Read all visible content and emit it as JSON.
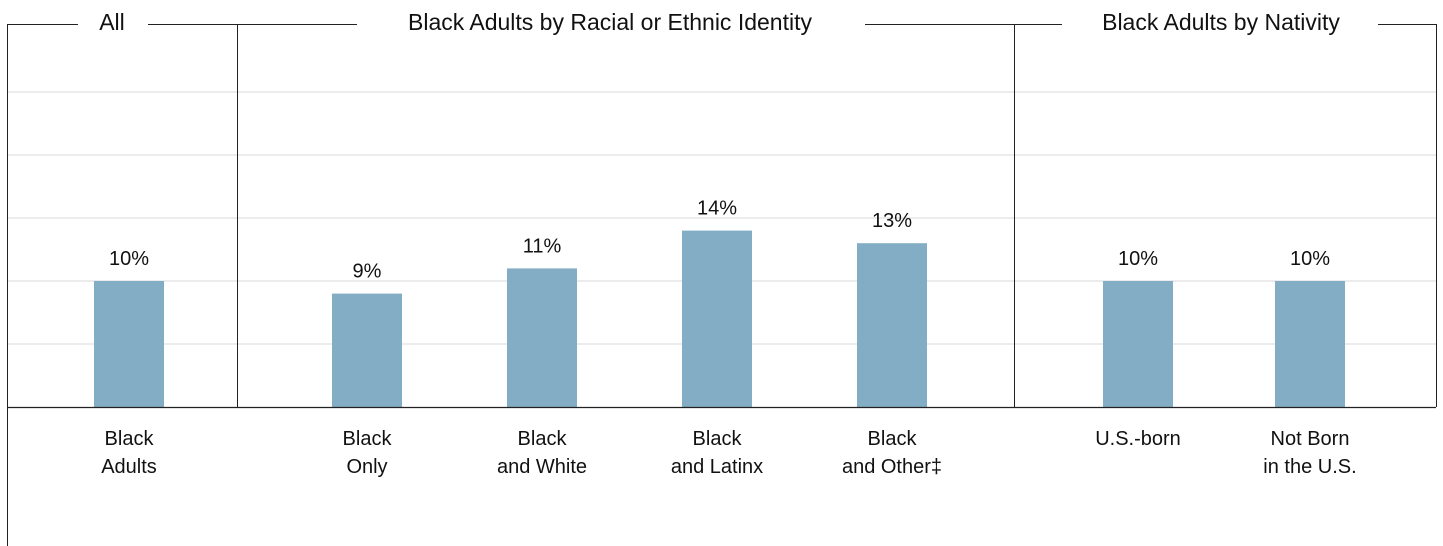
{
  "chart_data": {
    "type": "bar",
    "ylim": [
      0,
      30
    ],
    "grid": true,
    "colors": {
      "bar": "#82adc4",
      "grid": "#d9d9d9",
      "frame": "#222222"
    },
    "groups": [
      {
        "title": "All",
        "bars": [
          {
            "category": [
              "Black",
              "Adults"
            ],
            "value": 10,
            "label": "10%"
          }
        ]
      },
      {
        "title": "Black Adults by Racial or Ethnic Identity",
        "bars": [
          {
            "category": [
              "Black",
              "Only"
            ],
            "value": 9,
            "label": "9%"
          },
          {
            "category": [
              "Black",
              "and White"
            ],
            "value": 11,
            "label": "11%"
          },
          {
            "category": [
              "Black",
              "and Latinx"
            ],
            "value": 14,
            "label": "14%"
          },
          {
            "category": [
              "Black",
              "and Other‡"
            ],
            "value": 13,
            "label": "13%"
          }
        ]
      },
      {
        "title": "Black Adults by Nativity",
        "bars": [
          {
            "category": [
              "U.S.-born"
            ],
            "value": 10,
            "label": "10%"
          },
          {
            "category": [
              "Not Born",
              "in the U.S."
            ],
            "value": 10,
            "label": "10%"
          }
        ]
      }
    ]
  }
}
